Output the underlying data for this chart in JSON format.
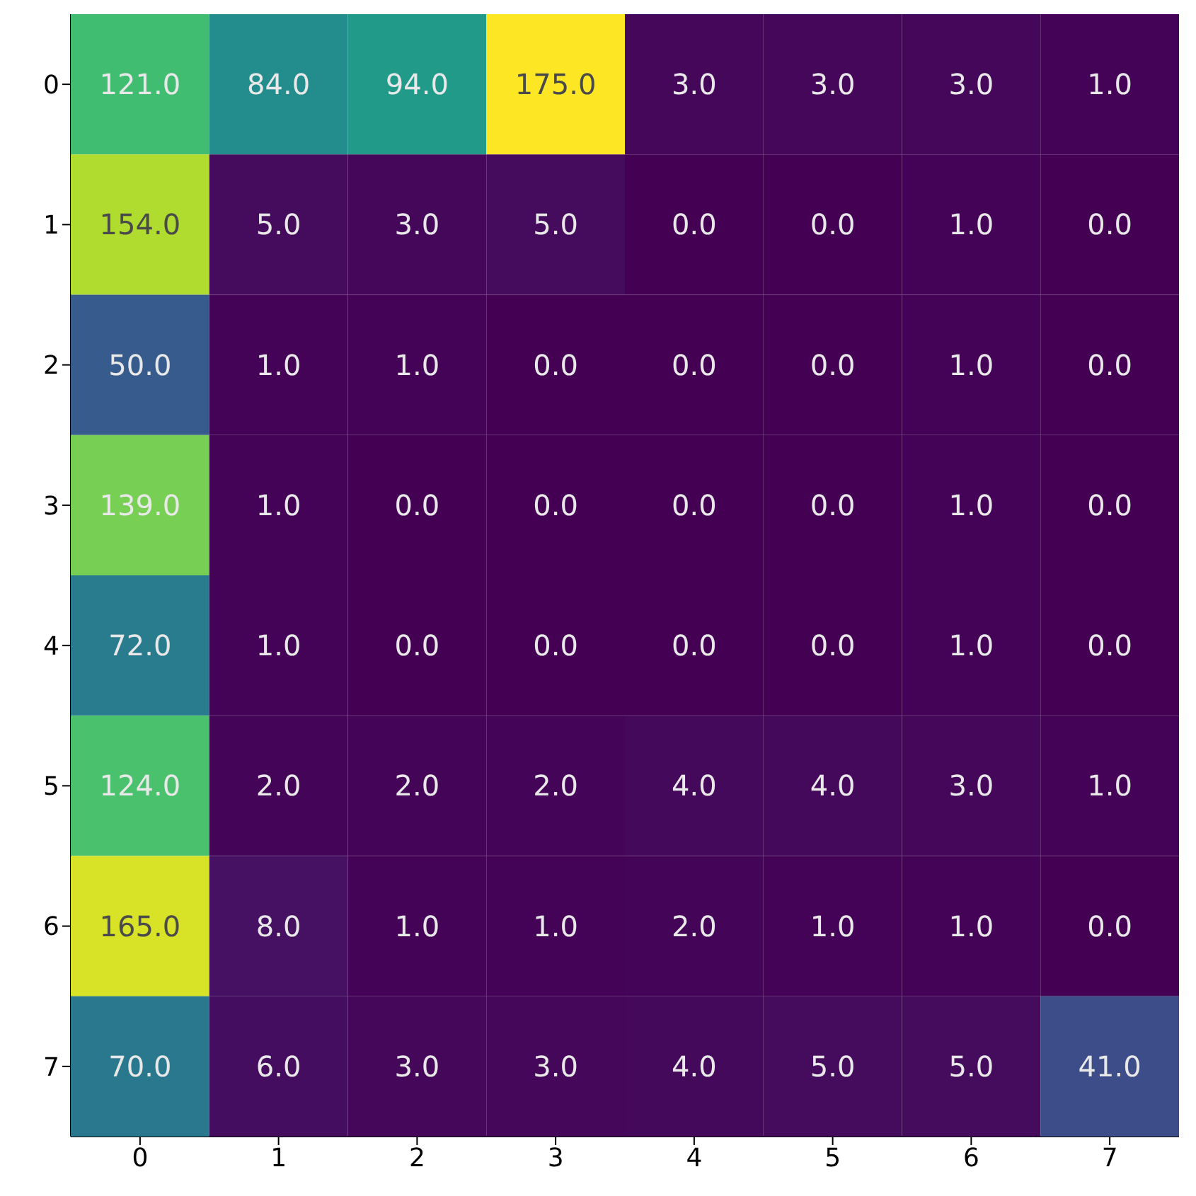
{
  "chart_data": {
    "type": "heatmap",
    "categories": [
      "0",
      "1",
      "2",
      "3",
      "4",
      "5",
      "6",
      "7"
    ],
    "y_categories": [
      "0",
      "1",
      "2",
      "3",
      "4",
      "5",
      "6",
      "7"
    ],
    "cells": [
      [
        121,
        84,
        94,
        175,
        3,
        3,
        3,
        1
      ],
      [
        154,
        5,
        3,
        5,
        0,
        0,
        1,
        0
      ],
      [
        50,
        1,
        1,
        0,
        0,
        0,
        1,
        0
      ],
      [
        139,
        1,
        0,
        0,
        0,
        0,
        1,
        0
      ],
      [
        72,
        1,
        0,
        0,
        0,
        0,
        1,
        0
      ],
      [
        124,
        2,
        2,
        2,
        4,
        4,
        3,
        1
      ],
      [
        165,
        8,
        1,
        1,
        2,
        1,
        1,
        0
      ],
      [
        70,
        6,
        3,
        3,
        4,
        5,
        5,
        41
      ]
    ],
    "cell_labels": [
      [
        "121.0",
        "84.0",
        "94.0",
        "175.0",
        "3.0",
        "3.0",
        "3.0",
        "1.0"
      ],
      [
        "154.0",
        "5.0",
        "3.0",
        "5.0",
        "0.0",
        "0.0",
        "1.0",
        "0.0"
      ],
      [
        "50.0",
        "1.0",
        "1.0",
        "0.0",
        "0.0",
        "0.0",
        "1.0",
        "0.0"
      ],
      [
        "139.0",
        "1.0",
        "0.0",
        "0.0",
        "0.0",
        "0.0",
        "1.0",
        "0.0"
      ],
      [
        "72.0",
        "1.0",
        "0.0",
        "0.0",
        "0.0",
        "0.0",
        "1.0",
        "0.0"
      ],
      [
        "124.0",
        "2.0",
        "2.0",
        "2.0",
        "4.0",
        "4.0",
        "3.0",
        "1.0"
      ],
      [
        "165.0",
        "8.0",
        "1.0",
        "1.0",
        "2.0",
        "1.0",
        "1.0",
        "0.0"
      ],
      [
        "70.0",
        "6.0",
        "3.0",
        "3.0",
        "4.0",
        "5.0",
        "5.0",
        "41.0"
      ]
    ]
  }
}
